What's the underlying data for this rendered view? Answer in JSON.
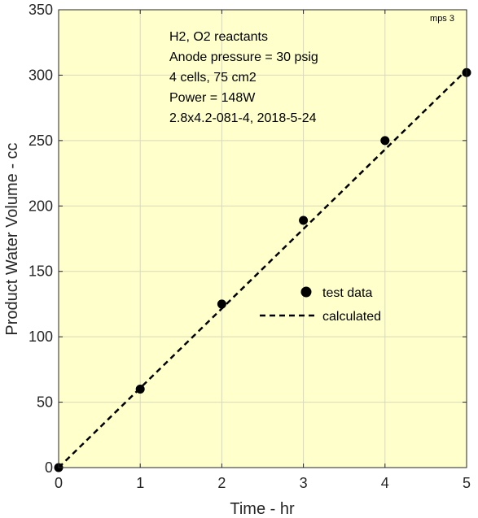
{
  "chart_data": {
    "type": "scatter",
    "xlabel": "Time - hr",
    "ylabel": "Product Water Volume - cc",
    "xlim": [
      0,
      5
    ],
    "ylim": [
      0,
      350
    ],
    "xticks": [
      0,
      1,
      2,
      3,
      4,
      5
    ],
    "yticks": [
      0,
      50,
      100,
      150,
      200,
      250,
      300,
      350
    ],
    "grid": true,
    "background_color": "#ffffcc",
    "corner_label": "mps 3",
    "annotations": [
      "H2, O2 reactants",
      "Anode pressure = 30 psig",
      "4 cells, 75 cm2",
      "Power = 148W",
      "2.8x4.2-081-4,  2018-5-24"
    ],
    "legend_position": "center-right",
    "series": [
      {
        "name": "test data",
        "style": "marker",
        "color": "#000000",
        "x": [
          0,
          1,
          2,
          3,
          4,
          5
        ],
        "y": [
          0,
          60,
          125,
          189,
          250,
          302
        ]
      },
      {
        "name": "calculated",
        "style": "dashed-line",
        "color": "#000000",
        "x": [
          0,
          5
        ],
        "y": [
          0,
          304
        ]
      }
    ]
  }
}
